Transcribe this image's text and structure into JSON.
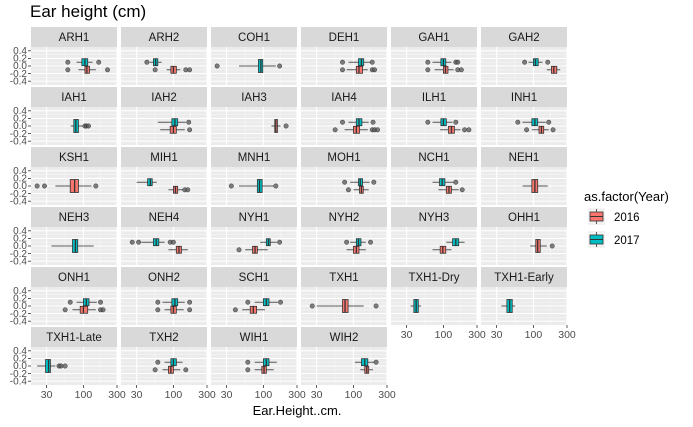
{
  "chart_data": {
    "type": "boxplot",
    "title": "Ear height (cm)",
    "xlabel": "Ear.Height..cm.",
    "ylabel": "",
    "x_scale": "log10",
    "x_ticks": [
      30,
      100,
      300
    ],
    "x_range": [
      18,
      300
    ],
    "y_ticks": [
      "0.4",
      "0.2",
      "0.0",
      "-0.2",
      "-0.4"
    ],
    "grid": true,
    "legend": {
      "title": "as.factor(Year)",
      "position": "right",
      "entries": [
        {
          "label": "2016",
          "color": "#F8766D"
        },
        {
          "label": "2017",
          "color": "#00BFC4"
        }
      ]
    },
    "colors": {
      "2016": "#F8766D",
      "2017": "#00BFC4",
      "panel_bg": "#EBEBEB",
      "strip_bg": "#D9D9D9"
    },
    "panels": [
      {
        "name": "ARH1",
        "series": [
          {
            "year": "2017",
            "q1": 95,
            "median": 105,
            "q3": 115,
            "whisker_low": 80,
            "whisker_high": 135,
            "outliers": [
              60,
              165
            ]
          },
          {
            "year": "2016",
            "q1": 105,
            "median": 112,
            "q3": 122,
            "whisker_low": 85,
            "whisker_high": 150,
            "outliers": [
              60,
              220
            ]
          }
        ]
      },
      {
        "name": "ARH2",
        "series": [
          {
            "year": "2017",
            "q1": 52,
            "median": 56,
            "q3": 60,
            "whisker_low": 46,
            "whisker_high": 68,
            "outliers": [
              42
            ]
          },
          {
            "year": "2016",
            "q1": 92,
            "median": 100,
            "q3": 110,
            "whisker_low": 80,
            "whisker_high": 125,
            "outliers": [
              55,
              150,
              170
            ]
          }
        ]
      },
      {
        "name": "COH1",
        "series": [
          {
            "year": "2017",
            "q1": 85,
            "median": 92,
            "q3": 98,
            "whisker_low": 45,
            "whisker_high": 150,
            "outliers": [
              22,
              170
            ]
          }
        ]
      },
      {
        "name": "DEH1",
        "series": [
          {
            "year": "2017",
            "q1": 118,
            "median": 130,
            "q3": 140,
            "whisker_low": 85,
            "whisker_high": 175,
            "outliers": [
              70,
              185
            ]
          },
          {
            "year": "2016",
            "q1": 110,
            "median": 120,
            "q3": 135,
            "whisker_low": 80,
            "whisker_high": 160,
            "outliers": [
              70,
              185,
              200
            ]
          }
        ]
      },
      {
        "name": "GAH1",
        "series": [
          {
            "year": "2017",
            "q1": 92,
            "median": 100,
            "q3": 108,
            "whisker_low": 70,
            "whisker_high": 130,
            "outliers": [
              60,
              150,
              160
            ]
          },
          {
            "year": "2016",
            "q1": 100,
            "median": 107,
            "q3": 116,
            "whisker_low": 75,
            "whisker_high": 140,
            "outliers": [
              60,
              160,
              180
            ]
          }
        ]
      },
      {
        "name": "GAH2",
        "series": [
          {
            "year": "2017",
            "q1": 100,
            "median": 107,
            "q3": 117,
            "whisker_low": 85,
            "whisker_high": 135,
            "outliers": [
              75,
              160
            ]
          },
          {
            "year": "2016",
            "q1": 180,
            "median": 195,
            "q3": 215,
            "whisker_low": 155,
            "whisker_high": 240,
            "outliers": []
          }
        ]
      },
      {
        "name": "IAH1",
        "series": [
          {
            "year": "2017",
            "q1": 73,
            "median": 78,
            "q3": 85,
            "whisker_low": 66,
            "whisker_high": 100,
            "outliers": [
              105,
              110,
              118
            ]
          }
        ]
      },
      {
        "name": "IAH2",
        "series": [
          {
            "year": "2017",
            "q1": 95,
            "median": 105,
            "q3": 115,
            "whisker_low": 60,
            "whisker_high": 150,
            "outliers": [
              165
            ]
          },
          {
            "year": "2016",
            "q1": 90,
            "median": 100,
            "q3": 110,
            "whisker_low": 65,
            "whisker_high": 145,
            "outliers": [
              170
            ]
          }
        ]
      },
      {
        "name": "IAH3",
        "series": [
          {
            "year": "2016",
            "q1": 145,
            "median": 150,
            "q3": 158,
            "whisker_low": 130,
            "whisker_high": 175,
            "outliers": [
              210
            ]
          }
        ]
      },
      {
        "name": "IAH4",
        "series": [
          {
            "year": "2017",
            "q1": 110,
            "median": 120,
            "q3": 132,
            "whisker_low": 85,
            "whisker_high": 165,
            "outliers": [
              70,
              190
            ]
          },
          {
            "year": "2016",
            "q1": 100,
            "median": 110,
            "q3": 122,
            "whisker_low": 75,
            "whisker_high": 160,
            "outliers": [
              55,
              185,
              200,
              220
            ]
          }
        ]
      },
      {
        "name": "ILH1",
        "series": [
          {
            "year": "2017",
            "q1": 92,
            "median": 100,
            "q3": 110,
            "whisker_low": 70,
            "whisker_high": 135,
            "outliers": [
              60,
              150
            ]
          },
          {
            "year": "2016",
            "q1": 118,
            "median": 130,
            "q3": 143,
            "whisker_low": 90,
            "whisker_high": 175,
            "outliers": [
              200,
              230
            ]
          }
        ]
      },
      {
        "name": "INH1",
        "series": [
          {
            "year": "2017",
            "q1": 95,
            "median": 105,
            "q3": 115,
            "whisker_low": 70,
            "whisker_high": 150,
            "outliers": [
              60,
              165
            ]
          },
          {
            "year": "2016",
            "q1": 120,
            "median": 130,
            "q3": 140,
            "whisker_low": 95,
            "whisker_high": 165,
            "outliers": [
              80,
              190
            ]
          }
        ]
      },
      {
        "name": "KSH1",
        "series": [
          {
            "year": "2016",
            "q1": 65,
            "median": 75,
            "q3": 85,
            "whisker_low": 40,
            "whisker_high": 130,
            "outliers": [
              22,
              28,
              150
            ]
          }
        ]
      },
      {
        "name": "MIH1",
        "series": [
          {
            "year": "2017",
            "q1": 43,
            "median": 47,
            "q3": 50,
            "whisker_low": 30,
            "whisker_high": 58,
            "outliers": []
          },
          {
            "year": "2016",
            "q1": 100,
            "median": 107,
            "q3": 115,
            "whisker_low": 85,
            "whisker_high": 135,
            "outliers": [
              145,
              160
            ]
          }
        ]
      },
      {
        "name": "MNH1",
        "series": [
          {
            "year": "2017",
            "q1": 82,
            "median": 88,
            "q3": 96,
            "whisker_low": 45,
            "whisker_high": 140,
            "outliers": [
              35,
              150
            ]
          }
        ]
      },
      {
        "name": "MOH1",
        "series": [
          {
            "year": "2017",
            "q1": 118,
            "median": 125,
            "q3": 135,
            "whisker_low": 90,
            "whisker_high": 170,
            "outliers": [
              75,
              195
            ]
          },
          {
            "year": "2016",
            "q1": 122,
            "median": 130,
            "q3": 138,
            "whisker_low": 100,
            "whisker_high": 165,
            "outliers": [
              85
            ]
          }
        ]
      },
      {
        "name": "NCH1",
        "series": [
          {
            "year": "2017",
            "q1": 88,
            "median": 96,
            "q3": 105,
            "whisker_low": 70,
            "whisker_high": 140,
            "outliers": [
              150
            ]
          },
          {
            "year": "2016",
            "q1": 110,
            "median": 120,
            "q3": 130,
            "whisker_low": 85,
            "whisker_high": 165,
            "outliers": [
              185
            ]
          }
        ]
      },
      {
        "name": "NEH1",
        "series": [
          {
            "year": "2016",
            "q1": 95,
            "median": 105,
            "q3": 115,
            "whisker_low": 70,
            "whisker_high": 160,
            "outliers": []
          }
        ]
      },
      {
        "name": "NEH3",
        "series": [
          {
            "year": "2017",
            "q1": 70,
            "median": 77,
            "q3": 83,
            "whisker_low": 35,
            "whisker_high": 140,
            "outliers": []
          }
        ]
      },
      {
        "name": "NEH4",
        "series": [
          {
            "year": "2017",
            "q1": 52,
            "median": 57,
            "q3": 62,
            "whisker_low": 35,
            "whisker_high": 75,
            "outliers": [
              26,
              32,
              90,
              100
            ]
          },
          {
            "year": "2016",
            "q1": 110,
            "median": 120,
            "q3": 130,
            "whisker_low": 85,
            "whisker_high": 160,
            "outliers": []
          }
        ]
      },
      {
        "name": "NYH1",
        "series": [
          {
            "year": "2017",
            "q1": 110,
            "median": 118,
            "q3": 125,
            "whisker_low": 90,
            "whisker_high": 155,
            "outliers": [
              170
            ]
          },
          {
            "year": "2016",
            "q1": 70,
            "median": 76,
            "q3": 82,
            "whisker_low": 55,
            "whisker_high": 115,
            "outliers": [
              45
            ]
          }
        ]
      },
      {
        "name": "NYH2",
        "series": [
          {
            "year": "2017",
            "q1": 110,
            "median": 118,
            "q3": 128,
            "whisker_low": 90,
            "whisker_high": 150,
            "outliers": [
              80,
              175
            ]
          },
          {
            "year": "2016",
            "q1": 100,
            "median": 110,
            "q3": 120,
            "whisker_low": 80,
            "whisker_high": 150,
            "outliers": []
          }
        ]
      },
      {
        "name": "NYH3",
        "series": [
          {
            "year": "2017",
            "q1": 135,
            "median": 150,
            "q3": 165,
            "whisker_low": 110,
            "whisker_high": 200,
            "outliers": []
          },
          {
            "year": "2016",
            "q1": 90,
            "median": 98,
            "q3": 108,
            "whisker_low": 70,
            "whisker_high": 130,
            "outliers": []
          }
        ]
      },
      {
        "name": "OHH1",
        "series": [
          {
            "year": "2016",
            "q1": 108,
            "median": 115,
            "q3": 125,
            "whisker_low": 90,
            "whisker_high": 155,
            "outliers": [
              185
            ]
          }
        ]
      },
      {
        "name": "ONH1",
        "series": [
          {
            "year": "2017",
            "q1": 100,
            "median": 110,
            "q3": 120,
            "whisker_low": 80,
            "whisker_high": 155,
            "outliers": [
              65,
              175
            ]
          },
          {
            "year": "2016",
            "q1": 90,
            "median": 100,
            "q3": 115,
            "whisker_low": 70,
            "whisker_high": 150,
            "outliers": [
              55,
              175,
              190
            ]
          }
        ]
      },
      {
        "name": "ONH2",
        "series": [
          {
            "year": "2017",
            "q1": 95,
            "median": 105,
            "q3": 115,
            "whisker_low": 70,
            "whisker_high": 145,
            "outliers": [
              60,
              170
            ]
          },
          {
            "year": "2016",
            "q1": 92,
            "median": 100,
            "q3": 110,
            "whisker_low": 75,
            "whisker_high": 140,
            "outliers": [
              60,
              170
            ]
          }
        ]
      },
      {
        "name": "SCH1",
        "series": [
          {
            "year": "2017",
            "q1": 100,
            "median": 110,
            "q3": 120,
            "whisker_low": 75,
            "whisker_high": 160,
            "outliers": [
              60,
              175
            ]
          },
          {
            "year": "2016",
            "q1": 65,
            "median": 72,
            "q3": 80,
            "whisker_low": 50,
            "whisker_high": 105,
            "outliers": [
              40
            ]
          }
        ]
      },
      {
        "name": "TXH1",
        "series": [
          {
            "year": "2016",
            "q1": 70,
            "median": 76,
            "q3": 84,
            "whisker_low": 30,
            "whisker_high": 140,
            "outliers": [
              26,
              210
            ]
          }
        ]
      },
      {
        "name": "TXH1-Dry",
        "series": [
          {
            "year": "2017",
            "q1": 38,
            "median": 41,
            "q3": 44,
            "whisker_low": 34,
            "whisker_high": 48,
            "outliers": []
          }
        ]
      },
      {
        "name": "TXH1-Early",
        "series": [
          {
            "year": "2017",
            "q1": 42,
            "median": 46,
            "q3": 50,
            "whisker_low": 35,
            "whisker_high": 55,
            "outliers": []
          }
        ]
      },
      {
        "name": "TXH1-Late",
        "series": [
          {
            "year": "2017",
            "q1": 29,
            "median": 32,
            "q3": 34,
            "whisker_low": 22,
            "whisker_high": 40,
            "outliers": [
              45,
              48,
              55
            ]
          }
        ]
      },
      {
        "name": "TXH2",
        "series": [
          {
            "year": "2017",
            "q1": 92,
            "median": 100,
            "q3": 110,
            "whisker_low": 75,
            "whisker_high": 135,
            "outliers": [
              60
            ]
          },
          {
            "year": "2016",
            "q1": 85,
            "median": 92,
            "q3": 100,
            "whisker_low": 70,
            "whisker_high": 125,
            "outliers": [
              55,
              150
            ]
          }
        ]
      },
      {
        "name": "WIH1",
        "series": [
          {
            "year": "2017",
            "q1": 100,
            "median": 110,
            "q3": 120,
            "whisker_low": 75,
            "whisker_high": 155,
            "outliers": [
              60
            ]
          },
          {
            "year": "2016",
            "q1": 95,
            "median": 102,
            "q3": 110,
            "whisker_low": 75,
            "whisker_high": 140,
            "outliers": [
              60
            ]
          }
        ]
      },
      {
        "name": "WIH2",
        "series": [
          {
            "year": "2017",
            "q1": 130,
            "median": 145,
            "q3": 160,
            "whisker_low": 105,
            "whisker_high": 200,
            "outliers": [
              210
            ]
          },
          {
            "year": "2016",
            "q1": 145,
            "median": 155,
            "q3": 165,
            "whisker_low": 125,
            "whisker_high": 190,
            "outliers": []
          }
        ]
      }
    ]
  }
}
